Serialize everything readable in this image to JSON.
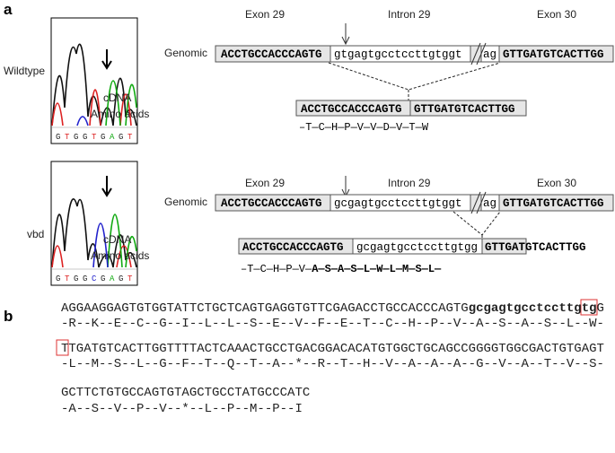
{
  "panel_a": {
    "label": "a",
    "wildtype": {
      "label": "Wildtype",
      "trace_bases": [
        "G",
        "T",
        "G",
        "G",
        "T",
        "G",
        "A",
        "G",
        "T"
      ],
      "exon_left": "Exon 29",
      "intron": "Intron 29",
      "exon_right": "Exon 30",
      "genomic_label": "Genomic",
      "genomic": [
        "ACCTGCCACCCAGTG",
        "gtgagtgcctccttgtggt",
        "ag",
        "GTTGATGTCACTTGG"
      ],
      "cdna_label": "cDNA",
      "amino_label": "Amino acids",
      "cdna": [
        "ACCTGCCACCCAGTG",
        "GTTGATGTCACTTGG"
      ],
      "amino": [
        "–T—C—H—P—V—V—D—V—T—W"
      ]
    },
    "vbd": {
      "label": "vbd",
      "trace_bases": [
        "G",
        "T",
        "G",
        "G",
        "C",
        "G",
        "A",
        "G",
        "T"
      ],
      "exon_left": "Exon 29",
      "intron": "Intron 29",
      "exon_right": "Exon 30",
      "genomic_label": "Genomic",
      "genomic": [
        "ACCTGCCACCCAGTG",
        "gcgagtgcctccttgtggt",
        "ag",
        "GTTGATGTCACTTGG"
      ],
      "cdna_label": "cDNA",
      "amino_label": "Amino acids",
      "cdna": [
        "ACCTGCCACCCAGTG",
        "gcgagtgcctccttgtgg",
        "GTTGATGTCACTTGG"
      ],
      "amino": [
        "–T—C—H—P—V—",
        "A—S—A—S—L—W—L—M—S—L—"
      ]
    }
  },
  "panel_b": {
    "label": "b",
    "lines": [
      {
        "sequence": [
          "AGGAAGGAGTGTGGTATTCTGCTCAGTGAGGTGTTCGAGACCTGCCACCCAGTG",
          "gcgagtgcctccttg",
          "tg",
          "G"
        ],
        "amino": "-R--K--E--C--G--I--L--L--S--E--V--F--E--T--C--H--P--V--A--S--A--S--L--W-"
      },
      {
        "sequence": [
          "T",
          "TGATGTCACTTGGTTTTACTCAAACTGCCTGACGGACACATGTGGCTGCAGCCGGGGTGGCGACTGTGAGT"
        ],
        "amino": "-L--M--S--L--G--F--T--Q--T--A--*--R--T--H--V--A--A--A--G--V--A--T--V--S-"
      },
      {
        "sequence": [
          "GCTTCTGTGCCAGTGTAGCTGCCTATGCCCATC"
        ],
        "amino": "-A--S--V--P--V--*--L--P--M--P--I"
      }
    ]
  }
}
